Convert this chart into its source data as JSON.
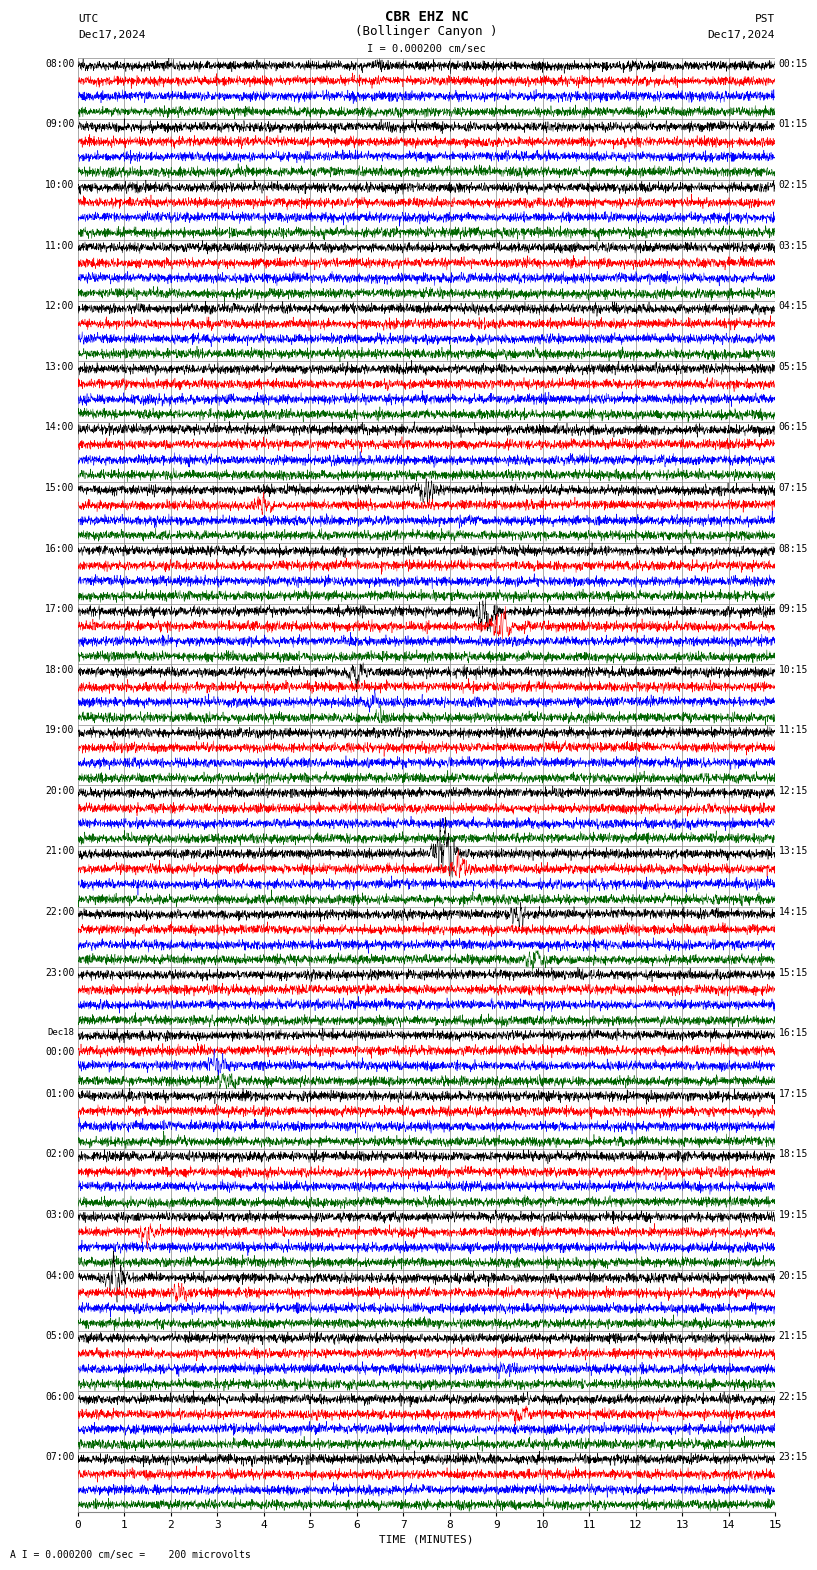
{
  "title_line1": "CBR EHZ NC",
  "title_line2": "(Bollinger Canyon )",
  "scale_label": "I = 0.000200 cm/sec",
  "left_label_top": "UTC",
  "left_label_date": "Dec17,2024",
  "right_label_top": "PST",
  "right_label_date": "Dec17,2024",
  "bottom_label": "TIME (MINUTES)",
  "bottom_note": "A I = 0.000200 cm/sec =    200 microvolts",
  "utc_times": [
    "08:00",
    "09:00",
    "10:00",
    "11:00",
    "12:00",
    "13:00",
    "14:00",
    "15:00",
    "16:00",
    "17:00",
    "18:00",
    "19:00",
    "20:00",
    "21:00",
    "22:00",
    "23:00",
    "Dec18\n00:00",
    "01:00",
    "02:00",
    "03:00",
    "04:00",
    "05:00",
    "06:00",
    "07:00"
  ],
  "pst_times": [
    "00:15",
    "01:15",
    "02:15",
    "03:15",
    "04:15",
    "05:15",
    "06:15",
    "07:15",
    "08:15",
    "09:15",
    "10:15",
    "11:15",
    "12:15",
    "13:15",
    "14:15",
    "15:15",
    "16:15",
    "17:15",
    "18:15",
    "19:15",
    "20:15",
    "21:15",
    "22:15",
    "23:15"
  ],
  "n_rows": 24,
  "minutes_per_row": 15,
  "trace_colors": [
    "black",
    "red",
    "blue",
    "#006400"
  ],
  "bg_color": "white",
  "fig_width": 8.5,
  "fig_height": 15.84,
  "x_ticks": [
    0,
    1,
    2,
    3,
    4,
    5,
    6,
    7,
    8,
    9,
    10,
    11,
    12,
    13,
    14,
    15
  ],
  "x_tick_labels": [
    "0",
    "1",
    "2",
    "3",
    "4",
    "5",
    "6",
    "7",
    "8",
    "9",
    "10",
    "11",
    "12",
    "13",
    "14",
    "15"
  ],
  "grid_color": "#888888",
  "horiz_line_color": "#888888",
  "noise_scale": 0.018,
  "special_events": [
    {
      "row": 7,
      "trace": 0,
      "minute": 7.5,
      "amplitude": 3.5
    },
    {
      "row": 7,
      "trace": 1,
      "minute": 4.0,
      "amplitude": 2.0
    },
    {
      "row": 9,
      "trace": 0,
      "minute": 8.8,
      "amplitude": 6.0
    },
    {
      "row": 9,
      "trace": 1,
      "minute": 9.1,
      "amplitude": 4.0
    },
    {
      "row": 10,
      "trace": 0,
      "minute": 6.0,
      "amplitude": 3.0
    },
    {
      "row": 10,
      "trace": 2,
      "minute": 6.3,
      "amplitude": 2.5
    },
    {
      "row": 10,
      "trace": 3,
      "minute": 6.5,
      "amplitude": 2.0
    },
    {
      "row": 13,
      "trace": 0,
      "minute": 7.9,
      "amplitude": 7.0
    },
    {
      "row": 13,
      "trace": 1,
      "minute": 8.2,
      "amplitude": 3.5
    },
    {
      "row": 14,
      "trace": 0,
      "minute": 9.5,
      "amplitude": 2.5
    },
    {
      "row": 14,
      "trace": 3,
      "minute": 9.8,
      "amplitude": 3.0
    },
    {
      "row": 16,
      "trace": 2,
      "minute": 3.0,
      "amplitude": 2.5
    },
    {
      "row": 16,
      "trace": 3,
      "minute": 3.2,
      "amplitude": 2.0
    },
    {
      "row": 19,
      "trace": 1,
      "minute": 1.5,
      "amplitude": 3.0
    },
    {
      "row": 20,
      "trace": 0,
      "minute": 0.8,
      "amplitude": 4.0
    },
    {
      "row": 20,
      "trace": 1,
      "minute": 2.2,
      "amplitude": 2.5
    },
    {
      "row": 21,
      "trace": 2,
      "minute": 9.2,
      "amplitude": 2.0
    },
    {
      "row": 22,
      "trace": 1,
      "minute": 9.5,
      "amplitude": 2.5
    }
  ]
}
